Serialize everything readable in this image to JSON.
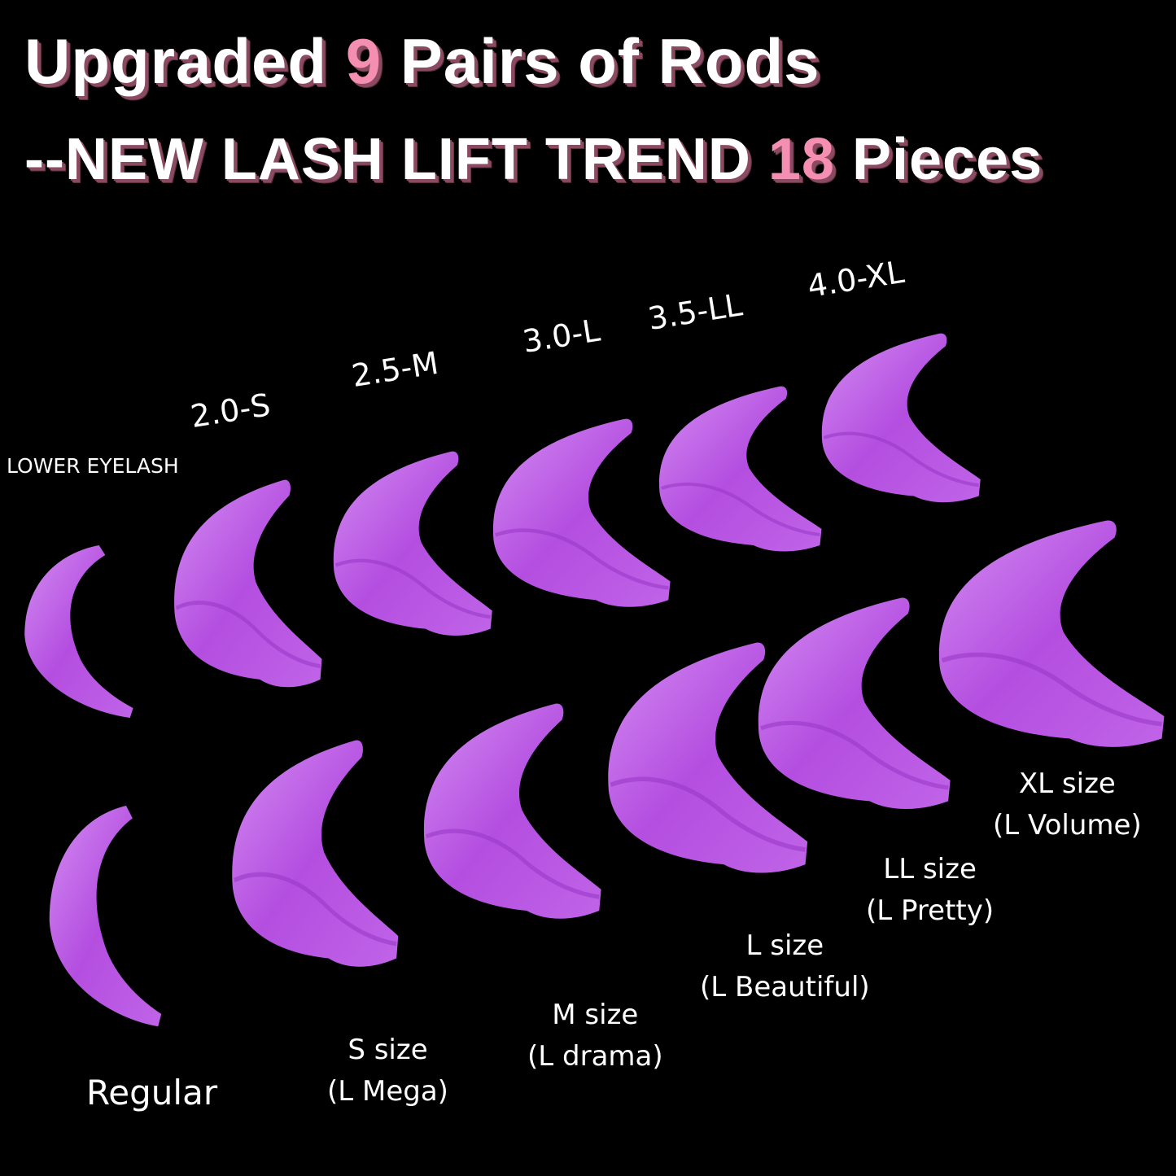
{
  "title": {
    "line1": {
      "pre": "Upgraded ",
      "highlight": "9",
      "post": " Pairs of Rods"
    },
    "line2": {
      "pre": "--NEW LASH LIFT TREND ",
      "highlight": "18",
      "post": " Pieces"
    },
    "highlight_color": "#f48fb1"
  },
  "rod_color": "#b44ee0",
  "top_row": {
    "lower": "LOWER EYELASH",
    "s": "2.0-S",
    "m": "2.5-M",
    "l": "3.0-L",
    "ll": "3.5-LL",
    "xl": "4.0-XL"
  },
  "bottom_row": {
    "regular": "Regular",
    "s": {
      "size": "S size",
      "name": "(L Mega)"
    },
    "m": {
      "size": "M size",
      "name": "(L drama)"
    },
    "l": {
      "size": "L size",
      "name": "(L Beautiful)"
    },
    "ll": {
      "size": "LL size",
      "name": "(L Pretty)"
    },
    "xl": {
      "size": "XL size",
      "name": "(L Volume)"
    }
  }
}
